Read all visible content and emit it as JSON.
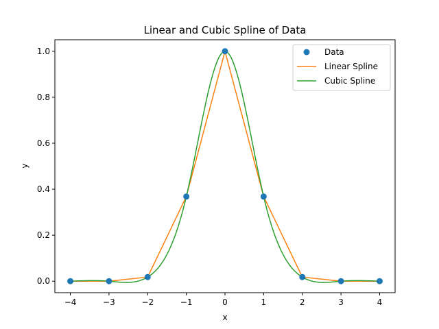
{
  "chart_data": {
    "type": "line",
    "title": "Linear and Cubic Spline of Data",
    "xlabel": "x",
    "ylabel": "y",
    "xlim": [
      -4.4,
      4.4
    ],
    "ylim": [
      -0.05,
      1.05
    ],
    "xticks": [
      -4,
      -3,
      -2,
      -1,
      0,
      1,
      2,
      3,
      4
    ],
    "xtick_labels": [
      "−4",
      "−3",
      "−2",
      "−1",
      "0",
      "1",
      "2",
      "3",
      "4"
    ],
    "yticks": [
      0.0,
      0.2,
      0.4,
      0.6,
      0.8,
      1.0
    ],
    "ytick_labels": [
      "0.0",
      "0.2",
      "0.4",
      "0.6",
      "0.8",
      "1.0"
    ],
    "grid": false,
    "legend": {
      "placement": "top-right",
      "entries": [
        "Data",
        "Linear Spline",
        "Cubic Spline"
      ]
    },
    "series": [
      {
        "name": "Data",
        "kind": "markers",
        "color": "#1f77b4",
        "x": [
          -4,
          -3,
          -2,
          -1,
          0,
          1,
          2,
          3,
          4
        ],
        "y": [
          0.0,
          0.0,
          0.018,
          0.368,
          1.0,
          0.368,
          0.018,
          0.0,
          0.0
        ]
      },
      {
        "name": "Linear Spline",
        "kind": "line",
        "color": "#ff7f0e",
        "x": [
          -4,
          -3,
          -2,
          -1,
          0,
          1,
          2,
          3,
          4
        ],
        "y": [
          0.0,
          0.0,
          0.018,
          0.368,
          1.0,
          0.368,
          0.018,
          0.0,
          0.0
        ]
      },
      {
        "name": "Cubic Spline",
        "kind": "spline",
        "color": "#2ca02c",
        "x": [
          -4,
          -3,
          -2,
          -1,
          0,
          1,
          2,
          3,
          4
        ],
        "y": [
          0.0,
          0.0,
          0.018,
          0.368,
          1.0,
          0.368,
          0.018,
          0.0,
          0.0
        ]
      }
    ]
  }
}
